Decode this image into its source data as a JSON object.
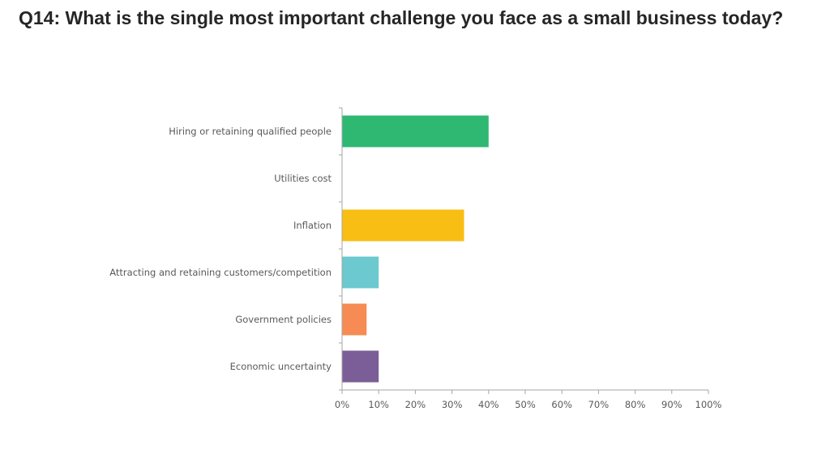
{
  "title": "Q14: What is the single most important challenge you face as a small business today?",
  "chart_data": {
    "type": "bar",
    "orientation": "horizontal",
    "categories": [
      "Hiring or retaining qualified people",
      "Utilities cost",
      "Inflation",
      "Attracting and retaining customers/competition",
      "Government policies",
      "Economic uncertainty"
    ],
    "values": [
      0.4,
      0.0,
      0.333,
      0.1,
      0.067,
      0.1
    ],
    "colors": [
      "#2EB872",
      "#2EB872",
      "#F8BE14",
      "#6BC9CF",
      "#F68C53",
      "#7B5E97"
    ],
    "xlim": [
      0,
      1
    ],
    "ticks": [
      "0%",
      "10%",
      "20%",
      "30%",
      "40%",
      "50%",
      "60%",
      "70%",
      "80%",
      "90%",
      "100%"
    ],
    "xlabel": "",
    "ylabel": "",
    "grid": false,
    "legend": "none"
  }
}
